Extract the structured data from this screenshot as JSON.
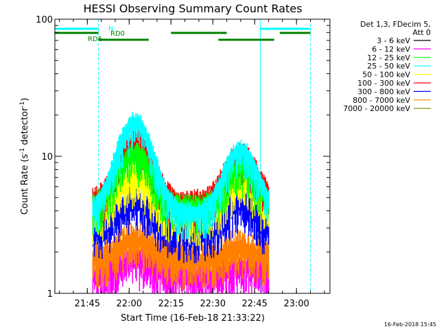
{
  "chart_data": {
    "type": "line",
    "title": "HESSI Observing Summary Count Rates",
    "xlabel": "Start Time (16-Feb-18 21:33:22)",
    "ylabel_main": "Count Rate (s",
    "ylabel_sup1": "-1",
    "ylabel_mid": " detector",
    "ylabel_sup2": "-1",
    "ylabel_end": ")",
    "y_scale": "log",
    "ylim": [
      1,
      100
    ],
    "xlim": [
      "21:33:22",
      "23:12"
    ],
    "x_ticks": [
      "21:45",
      "22:00",
      "22:15",
      "22:30",
      "22:45",
      "23:00"
    ],
    "y_ticks": [
      "1",
      "10",
      "100"
    ],
    "legend_header": [
      "Det 1,3, FDecim 5,",
      "Att 0"
    ],
    "legend_placement": "right",
    "series": [
      {
        "name": "3 - 6 keV",
        "color": "#000000"
      },
      {
        "name": "6 - 12 keV",
        "color": "#ff00ff"
      },
      {
        "name": "12 - 25 keV",
        "color": "#00ff00"
      },
      {
        "name": "25 - 50 keV",
        "color": "#00ffff"
      },
      {
        "name": "50 - 100 keV",
        "color": "#ffff00"
      },
      {
        "name": "100 - 300 keV",
        "color": "#ff0000"
      },
      {
        "name": "300 - 800 keV",
        "color": "#0000ff"
      },
      {
        "name": "800 - 7000 keV",
        "color": "#ff8000"
      },
      {
        "name": "7000 - 20000 keV",
        "color": "#808000"
      }
    ],
    "annotations": {
      "N": "N",
      "RD0": "RD0",
      "RD6": "RD6"
    },
    "night_bars": [
      [
        "21:33:22",
        "21:49"
      ],
      [
        "22:47",
        "23:05"
      ]
    ],
    "rd0_bars": [
      [
        "21:33:22",
        "21:49"
      ],
      [
        "22:15",
        "22:35"
      ],
      [
        "22:54",
        "23:05"
      ]
    ],
    "rd6_bars": [
      [
        "21:49",
        "22:07"
      ],
      [
        "22:32",
        "22:52"
      ]
    ],
    "vertical_markers_solid": [
      "21:33:22",
      "22:47"
    ],
    "vertical_markers_dashed": [
      "21:49",
      "23:05"
    ],
    "data_windows": [
      [
        "21:47",
        "22:50"
      ]
    ],
    "approx_peak_levels": {
      "100 - 300 keV": [
        {
          "time": "22:02",
          "value": 15
        },
        {
          "time": "22:20",
          "value": 5.5
        },
        {
          "time": "22:40",
          "value": 11
        }
      ],
      "25 - 50 keV": [
        {
          "time": "22:02",
          "value": 20
        },
        {
          "time": "22:40",
          "value": 12
        }
      ],
      "300 - 800 keV": [
        {
          "time": "22:02",
          "value": 5
        },
        {
          "time": "22:40",
          "value": 5
        }
      ],
      "800 - 7000 keV": [
        {
          "time": "22:02",
          "value": 2.5
        },
        {
          "time": "22:40",
          "value": 2.3
        }
      ]
    },
    "footer_date": "16-Feb-2018 15:45"
  }
}
